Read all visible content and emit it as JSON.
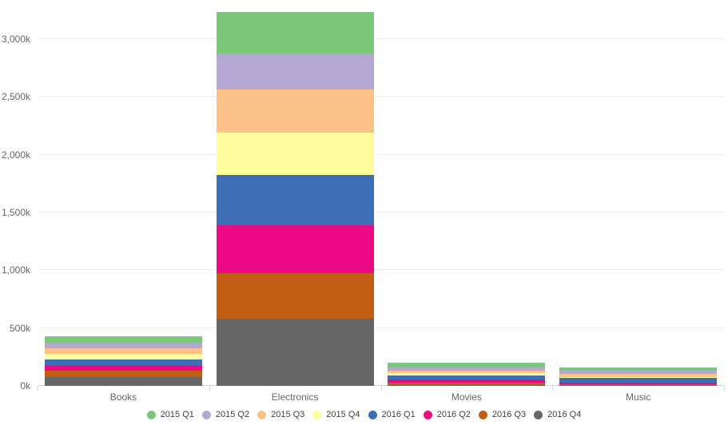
{
  "chart_data": {
    "type": "bar",
    "stacked": true,
    "orientation": "vertical",
    "title": "",
    "xlabel": "",
    "ylabel": "",
    "unit": "thousands (k)",
    "categories": [
      "Books",
      "Electronics",
      "Movies",
      "Music"
    ],
    "series": [
      {
        "name": "2015 Q1",
        "color": "#7bc87c",
        "values": [
          50,
          357,
          37,
          28
        ]
      },
      {
        "name": "2015 Q2",
        "color": "#b4a7d4",
        "values": [
          51,
          315,
          28,
          23
        ]
      },
      {
        "name": "2015 Q3",
        "color": "#fcc189",
        "values": [
          48,
          369,
          21,
          28
        ]
      },
      {
        "name": "2015 Q4",
        "color": "#fdfd9d",
        "values": [
          50,
          369,
          21,
          11
        ]
      },
      {
        "name": "2016 Q1",
        "color": "#3c6db5",
        "values": [
          46,
          438,
          39,
          39
        ]
      },
      {
        "name": "2016 Q2",
        "color": "#ec0984",
        "values": [
          50,
          410,
          27,
          14
        ]
      },
      {
        "name": "2016 Q3",
        "color": "#c25d16",
        "values": [
          57,
          396,
          19,
          9
        ]
      },
      {
        "name": "2016 Q4",
        "color": "#666666",
        "values": [
          74,
          581,
          7,
          5
        ]
      }
    ],
    "stack_order": "last series at bottom, first series on top",
    "category_totals": [
      426,
      3235,
      199,
      157
    ],
    "ylim": [
      0,
      3000
    ],
    "y_tick_step": 500,
    "y_tick_labels": [
      "0k",
      "500k",
      "1,000k",
      "1,500k",
      "2,000k",
      "2,500k",
      "3,000k"
    ],
    "grid": "horizontal gridlines on",
    "legend_position": "bottom-center"
  },
  "style": {
    "background": "#ffffff",
    "grid_color": "#ececec",
    "axis_line_color": "#d6d6e0",
    "axis_label_color": "#65656c",
    "legend_label_color": "#3f3f46"
  }
}
